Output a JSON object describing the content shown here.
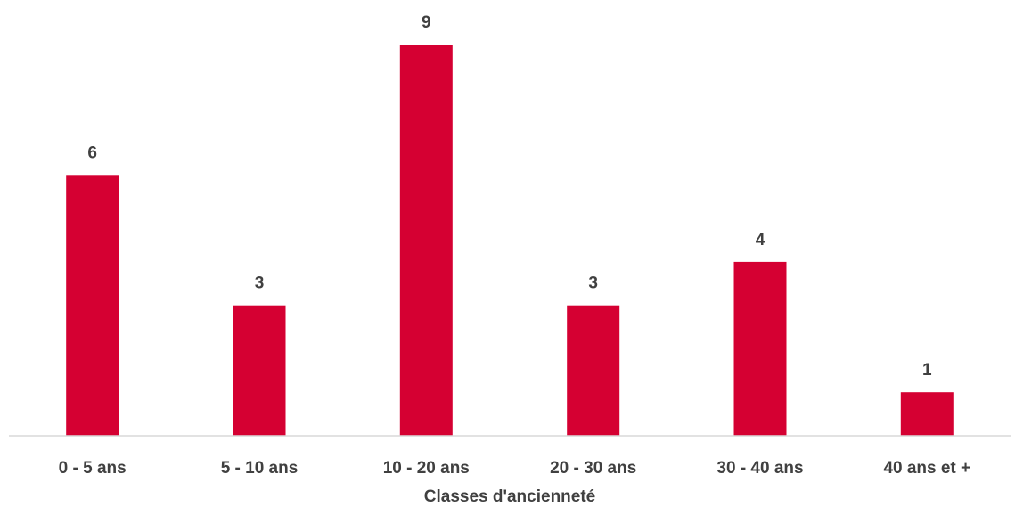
{
  "chart_data": {
    "type": "bar",
    "categories": [
      "0 - 5 ans",
      "5 - 10 ans",
      "10 - 20 ans",
      "20 - 30 ans",
      "30 - 40 ans",
      "40 ans et +"
    ],
    "values": [
      6,
      3,
      9,
      3,
      4,
      1
    ],
    "title": "",
    "xlabel": "Classes d'ancienneté",
    "ylabel": "",
    "ylim": [
      0,
      9
    ],
    "grid": false,
    "legend": "none",
    "data_labels": true,
    "colors": {
      "bar": "#D50032",
      "label_text": "#404040",
      "axis": "#D9D9D9"
    }
  }
}
